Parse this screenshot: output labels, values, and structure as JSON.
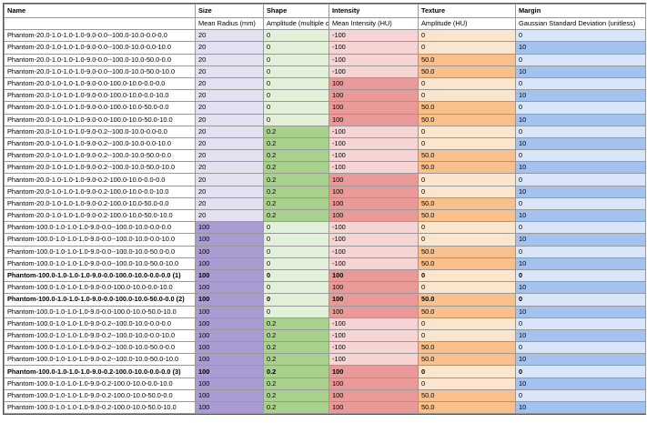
{
  "table": {
    "columns": [
      "Name",
      "Size",
      "Shape",
      "Intensity",
      "Texture",
      "Margin"
    ],
    "units": [
      "",
      "Mean Radius (mm)",
      "Amplitude (multiple of radius)",
      "Mean Intensity (HU)",
      "Amplitude (HU)",
      "Gaussian Standard Deviation (unitless)"
    ],
    "rows": [
      {
        "cells": [
          "Phantom-20.0-1.0-1.0-1.0-9.0-0.0--100.0-10.0-0.0-0.0",
          "20",
          "0",
          "-100",
          "0",
          "0"
        ]
      },
      {
        "cells": [
          "Phantom-20.0-1.0-1.0-1.0-9.0-0.0--100.0-10.0-0.0-10.0",
          "20",
          "0",
          "-100",
          "0",
          "10"
        ]
      },
      {
        "cells": [
          "Phantom-20.0-1.0-1.0-1.0-9.0-0.0--100.0-10.0-50.0-0.0",
          "20",
          "0",
          "-100",
          "50.0",
          "0"
        ]
      },
      {
        "cells": [
          "Phantom-20.0-1.0-1.0-1.0-9.0-0.0--100.0-10.0-50.0-10.0",
          "20",
          "0",
          "-100",
          "50.0",
          "10"
        ]
      },
      {
        "cells": [
          "Phantom-20.0-1.0-1.0-1.0-9.0-0.0-100.0-10.0-0.0-0.0",
          "20",
          "0",
          "100",
          "0",
          "0"
        ]
      },
      {
        "cells": [
          "Phantom-20.0-1.0-1.0-1.0-9.0-0.0-100.0-10.0-0.0-10.0",
          "20",
          "0",
          "100",
          "0",
          "10"
        ]
      },
      {
        "cells": [
          "Phantom-20.0-1.0-1.0-1.0-9.0-0.0-100.0-10.0-50.0-0.0",
          "20",
          "0",
          "100",
          "50.0",
          "0"
        ]
      },
      {
        "cells": [
          "Phantom-20.0-1.0-1.0-1.0-9.0-0.0-100.0-10.0-50.0-10.0",
          "20",
          "0",
          "100",
          "50.0",
          "10"
        ]
      },
      {
        "cells": [
          "Phantom-20.0-1.0-1.0-1.0-9.0-0.2--100.0-10.0-0.0-0.0",
          "20",
          "0.2",
          "-100",
          "0",
          "0"
        ]
      },
      {
        "cells": [
          "Phantom-20.0-1.0-1.0-1.0-9.0-0.2--100.0-10.0-0.0-10.0",
          "20",
          "0.2",
          "-100",
          "0",
          "10"
        ]
      },
      {
        "cells": [
          "Phantom-20.0-1.0-1.0-1.0-9.0-0.2--100.0-10.0-50.0-0.0",
          "20",
          "0.2",
          "-100",
          "50.0",
          "0"
        ]
      },
      {
        "cells": [
          "Phantom-20.0-1.0-1.0-1.0-9.0-0.2--100.0-10.0-50.0-10.0",
          "20",
          "0.2",
          "-100",
          "50.0",
          "10"
        ]
      },
      {
        "cells": [
          "Phantom-20.0-1.0-1.0-1.0-9.0-0.2-100.0-10.0-0.0-0.0",
          "20",
          "0.2",
          "100",
          "0",
          "0"
        ]
      },
      {
        "cells": [
          "Phantom-20.0-1.0-1.0-1.0-9.0-0.2-100.0-10.0-0.0-10.0",
          "20",
          "0.2",
          "100",
          "0",
          "10"
        ]
      },
      {
        "cells": [
          "Phantom-20.0-1.0-1.0-1.0-9.0-0.2-100.0-10.0-50.0-0.0",
          "20",
          "0.2",
          "100",
          "50.0",
          "0"
        ]
      },
      {
        "cells": [
          "Phantom-20.0-1.0-1.0-1.0-9.0-0.2-100.0-10.0-50.0-10.0",
          "20",
          "0.2",
          "100",
          "50.0",
          "10"
        ]
      },
      {
        "cells": [
          "Phantom-100.0-1.0-1.0-1.0-9.0-0.0--100.0-10.0-0.0-0.0",
          "100",
          "0",
          "-100",
          "0",
          "0"
        ]
      },
      {
        "cells": [
          "Phantom-100.0-1.0-1.0-1.0-9.0-0.0--100.0-10.0-0.0-10.0",
          "100",
          "0",
          "-100",
          "0",
          "10"
        ]
      },
      {
        "cells": [
          "Phantom-100.0-1.0-1.0-1.0-9.0-0.0--100.0-10.0-50.0-0.0",
          "100",
          "0",
          "-100",
          "50.0",
          "0"
        ]
      },
      {
        "cells": [
          "Phantom-100.0-1.0-1.0-1.0-9.0-0.0--100.0-10.0-50.0-10.0",
          "100",
          "0",
          "-100",
          "50.0",
          "10"
        ]
      },
      {
        "cells": [
          "Phantom-100.0-1.0-1.0-1.0-9.0-0.0-100.0-10.0-0.0-0.0 (1)",
          "100",
          "0",
          "100",
          "0",
          "0"
        ],
        "bold": true
      },
      {
        "cells": [
          "Phantom-100.0-1.0-1.0-1.0-9.0-0.0-100.0-10.0-0.0-10.0",
          "100",
          "0",
          "100",
          "0",
          "10"
        ]
      },
      {
        "cells": [
          "Phantom-100.0-1.0-1.0-1.0-9.0-0.0-100.0-10.0-50.0-0.0 (2)",
          "100",
          "0",
          "100",
          "50.0",
          "0"
        ],
        "bold": true
      },
      {
        "cells": [
          "Phantom-100.0-1.0-1.0-1.0-9.0-0.0-100.0-10.0-50.0-10.0",
          "100",
          "0",
          "100",
          "50.0",
          "10"
        ]
      },
      {
        "cells": [
          "Phantom-100.0-1.0-1.0-1.0-9.0-0.2--100.0-10.0-0.0-0.0",
          "100",
          "0.2",
          "-100",
          "0",
          "0"
        ]
      },
      {
        "cells": [
          "Phantom-100.0-1.0-1.0-1.0-9.0-0.2--100.0-10.0-0.0-10.0",
          "100",
          "0.2",
          "-100",
          "0",
          "10"
        ]
      },
      {
        "cells": [
          "Phantom-100.0-1.0-1.0-1.0-9.0-0.2--100.0-10.0-50.0-0.0",
          "100",
          "0.2",
          "-100",
          "50.0",
          "0"
        ]
      },
      {
        "cells": [
          "Phantom-100.0-1.0-1.0-1.0-9.0-0.2--100.0-10.0-50.0-10.0",
          "100",
          "0.2",
          "-100",
          "50.0",
          "10"
        ]
      },
      {
        "cells": [
          "Phantom-100.0-1.0-1.0-1.0-9.0-0.2-100.0-10.0-0.0-0.0 (3)",
          "100",
          "0.2",
          "100",
          "0",
          "0"
        ],
        "bold": true
      },
      {
        "cells": [
          "Phantom-100.0-1.0-1.0-1.0-9.0-0.2-100.0-10.0-0.0-10.0",
          "100",
          "0.2",
          "100",
          "0",
          "10"
        ]
      },
      {
        "cells": [
          "Phantom-100.0-1.0-1.0-1.0-9.0-0.2-100.0-10.0-50.0-0.0",
          "100",
          "0.2",
          "100",
          "50.0",
          "0"
        ]
      },
      {
        "cells": [
          "Phantom-100.0-1.0-1.0-1.0-9.0-0.2-100.0-10.0-50.0-10.0",
          "100",
          "0.2",
          "100",
          "50.0",
          "10"
        ]
      }
    ]
  }
}
